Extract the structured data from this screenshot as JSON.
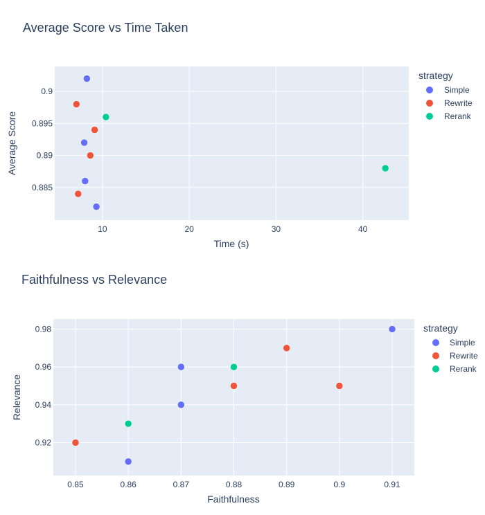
{
  "colors": {
    "plot_bg": "#e5ecf6",
    "grid": "#ffffff",
    "text": "#2a3f5f",
    "simple": "#636efa",
    "rewrite": "#ef553b",
    "rerank": "#00cc96"
  },
  "chart_data": [
    {
      "type": "scatter",
      "title": "Average Score vs Time Taken",
      "xlabel": "Time (s)",
      "ylabel": "Average Score",
      "xlim": [
        4.5,
        45.3
      ],
      "ylim": [
        0.8799,
        0.9039
      ],
      "xticks": [
        10,
        20,
        30,
        40
      ],
      "xtick_labels": [
        "10",
        "20",
        "30",
        "40"
      ],
      "yticks": [
        0.885,
        0.89,
        0.895,
        0.9
      ],
      "ytick_labels": [
        "0.885",
        "0.89",
        "0.895",
        "0.9"
      ],
      "grid": true,
      "legend": {
        "title": "strategy",
        "placement": "top-right"
      },
      "series": [
        {
          "name": "Simple",
          "color": "#636efa",
          "points": [
            {
              "x": 8.2,
              "y": 0.902
            },
            {
              "x": 7.9,
              "y": 0.892
            },
            {
              "x": 8.0,
              "y": 0.886
            },
            {
              "x": 9.3,
              "y": 0.882
            }
          ]
        },
        {
          "name": "Rewrite",
          "color": "#ef553b",
          "points": [
            {
              "x": 7.0,
              "y": 0.898
            },
            {
              "x": 9.1,
              "y": 0.894
            },
            {
              "x": 8.6,
              "y": 0.89
            },
            {
              "x": 7.2,
              "y": 0.884
            }
          ]
        },
        {
          "name": "Rerank",
          "color": "#00cc96",
          "points": [
            {
              "x": 10.4,
              "y": 0.896
            },
            {
              "x": 42.6,
              "y": 0.888
            }
          ]
        }
      ]
    },
    {
      "type": "scatter",
      "title": "Faithfulness vs Relevance",
      "xlabel": "Faithfulness",
      "ylabel": "Relevance",
      "xlim": [
        0.8458,
        0.9142
      ],
      "ylim": [
        0.9026,
        0.9853
      ],
      "xticks": [
        0.85,
        0.86,
        0.87,
        0.88,
        0.89,
        0.9,
        0.91
      ],
      "xtick_labels": [
        "0.85",
        "0.86",
        "0.87",
        "0.88",
        "0.89",
        "0.9",
        "0.91"
      ],
      "yticks": [
        0.92,
        0.94,
        0.96,
        0.98
      ],
      "ytick_labels": [
        "0.92",
        "0.94",
        "0.96",
        "0.98"
      ],
      "grid": true,
      "legend": {
        "title": "strategy",
        "placement": "top-right"
      },
      "series": [
        {
          "name": "Simple",
          "color": "#636efa",
          "points": [
            {
              "x": 0.91,
              "y": 0.98
            },
            {
              "x": 0.87,
              "y": 0.96
            },
            {
              "x": 0.87,
              "y": 0.94
            },
            {
              "x": 0.86,
              "y": 0.91
            }
          ]
        },
        {
          "name": "Rewrite",
          "color": "#ef553b",
          "points": [
            {
              "x": 0.89,
              "y": 0.97
            },
            {
              "x": 0.88,
              "y": 0.95
            },
            {
              "x": 0.9,
              "y": 0.95
            },
            {
              "x": 0.85,
              "y": 0.92
            }
          ]
        },
        {
          "name": "Rerank",
          "color": "#00cc96",
          "points": [
            {
              "x": 0.88,
              "y": 0.96
            },
            {
              "x": 0.86,
              "y": 0.93
            }
          ]
        }
      ]
    }
  ]
}
